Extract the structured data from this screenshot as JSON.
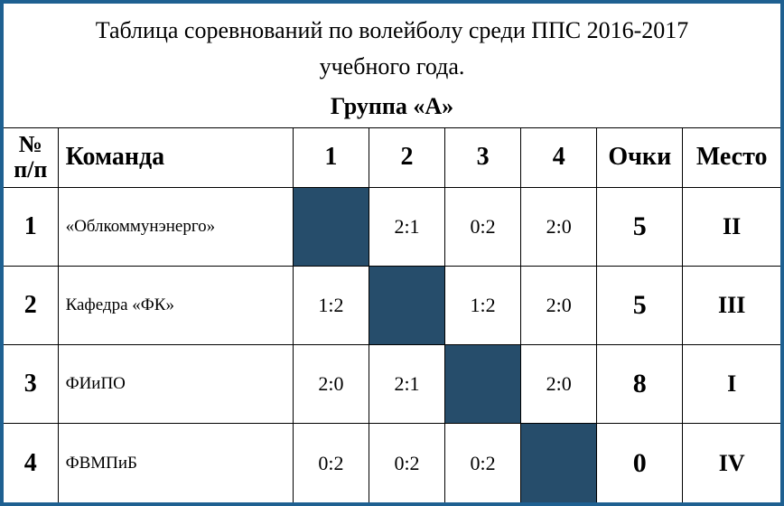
{
  "title_line1": "Таблица соревнований по волейболу среди ППС 2016-2017",
  "title_line2": "учебного года.",
  "group_label": "Группа «А»",
  "frame_border_color": "#1e6091",
  "diag_cell_color": "#264d6b",
  "background_color": "#ffffff",
  "text_color": "#000000",
  "headers": {
    "num": "№ п/п",
    "team": "Команда",
    "col1": "1",
    "col2": "2",
    "col3": "3",
    "col4": "4",
    "points": "Очки",
    "place": "Место"
  },
  "font_sizes": {
    "title": 26,
    "group": 26,
    "header": 28,
    "row_num": 28,
    "team_name": 19,
    "score": 22,
    "points": 30,
    "place": 26
  },
  "column_widths": {
    "num": 60,
    "team": 260,
    "score": 84,
    "points": 95,
    "place": 108
  },
  "rows": [
    {
      "num": "1",
      "team": "«Облкоммунэнерго»",
      "scores": [
        "",
        "2:1",
        "0:2",
        "2:0"
      ],
      "diagonal_index": 0,
      "points": "5",
      "place": "II"
    },
    {
      "num": "2",
      "team": "Кафедра «ФК»",
      "scores": [
        "1:2",
        "",
        "1:2",
        "2:0"
      ],
      "diagonal_index": 1,
      "points": "5",
      "place": "III"
    },
    {
      "num": "3",
      "team": "ФИиПО",
      "scores": [
        "2:0",
        "2:1",
        "",
        "2:0"
      ],
      "diagonal_index": 2,
      "points": "8",
      "place": "I"
    },
    {
      "num": "4",
      "team": "ФВМПиБ",
      "scores": [
        "0:2",
        "0:2",
        "0:2",
        ""
      ],
      "diagonal_index": 3,
      "points": "0",
      "place": "IV"
    }
  ]
}
